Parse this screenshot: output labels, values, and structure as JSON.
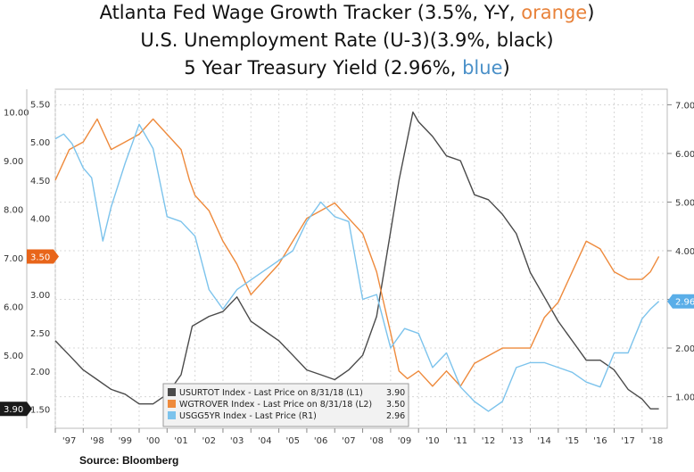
{
  "titles": {
    "line1_prefix": "Atlanta Fed Wage Growth Tracker (3.5%, Y-Y, ",
    "line1_highlight": "orange",
    "line1_suffix": ")",
    "line2": "U.S. Unemployment Rate (U-3)(3.9%, black)",
    "line3_prefix": "5 Year Treasury Yield (2.96%, ",
    "line3_highlight": "blue",
    "line3_suffix": ")"
  },
  "source": "Source: Bloomberg",
  "colors": {
    "unemployment": "#4a4a4a",
    "wage": "#ee8a3c",
    "treasury": "#7cc3ec",
    "tag_unemployment_bg": "#1a1a1a",
    "tag_wage_bg": "#e8651a",
    "tag_treasury_bg": "#5aaee8",
    "grid": "#d8d8d8"
  },
  "chart_data": {
    "type": "line",
    "x_ticks": [
      "'97",
      "'98",
      "'99",
      "'00",
      "'01",
      "'02",
      "'03",
      "'04",
      "'05",
      "'06",
      "'07",
      "'08",
      "'09",
      "'10",
      "'11",
      "'12",
      "'13",
      "'14",
      "'15",
      "'16",
      "'17",
      "'18"
    ],
    "x_range": [
      1997.0,
      2018.9
    ],
    "axes": {
      "unemployment": {
        "ticks": [
          "10.00",
          "9.00",
          "8.00",
          "7.00",
          "6.00",
          "5.00"
        ],
        "range": [
          3.5,
          10.25
        ]
      },
      "wage": {
        "ticks": [
          "5.50",
          "5.00",
          "4.50",
          "4.00",
          "3.50",
          "3.00",
          "2.50",
          "2.00",
          "1.50"
        ],
        "range": [
          1.25,
          5.55
        ]
      },
      "treasury": {
        "ticks": [
          "7.00",
          "6.00",
          "5.00",
          "4.00",
          "3.00",
          "2.00",
          "1.00"
        ],
        "range": [
          0.35,
          7.1
        ]
      }
    },
    "last_values": {
      "unemployment": "3.90",
      "wage": "3.50",
      "treasury": "2.96"
    },
    "legend": [
      {
        "series": "unemployment",
        "label": "USURTOT Index - Last Price on 8/31/18 (L1)",
        "value": "3.90"
      },
      {
        "series": "wage",
        "label": "WGTROVER Index - Last Price on 8/31/18 (L2)",
        "value": "3.50"
      },
      {
        "series": "treasury",
        "label": "USGG5YR Index - Last Price (R1)",
        "value": "2.96"
      }
    ],
    "series": [
      {
        "name": "unemployment",
        "axis": "unemployment",
        "x": [
          1997.0,
          1997.5,
          1998.0,
          1998.5,
          1999.0,
          1999.5,
          2000.0,
          2000.5,
          2001.0,
          2001.5,
          2001.9,
          2002.5,
          2003.0,
          2003.5,
          2003.8,
          2004.0,
          2004.5,
          2005.0,
          2005.5,
          2006.0,
          2006.5,
          2007.0,
          2007.5,
          2008.0,
          2008.5,
          2008.9,
          2009.3,
          2009.8,
          2010.0,
          2010.5,
          2011.0,
          2011.5,
          2012.0,
          2012.5,
          2013.0,
          2013.5,
          2014.0,
          2014.5,
          2015.0,
          2015.5,
          2016.0,
          2016.5,
          2017.0,
          2017.5,
          2018.0,
          2018.3,
          2018.6
        ],
        "values": [
          5.3,
          5.0,
          4.7,
          4.5,
          4.3,
          4.2,
          4.0,
          4.0,
          4.2,
          4.6,
          5.6,
          5.8,
          5.9,
          6.2,
          5.9,
          5.7,
          5.5,
          5.3,
          5.0,
          4.7,
          4.6,
          4.5,
          4.7,
          5.0,
          5.8,
          7.2,
          8.6,
          10.0,
          9.8,
          9.5,
          9.1,
          9.0,
          8.3,
          8.2,
          7.9,
          7.5,
          6.7,
          6.2,
          5.7,
          5.3,
          4.9,
          4.9,
          4.7,
          4.3,
          4.1,
          3.9,
          3.9
        ]
      },
      {
        "name": "wage",
        "axis": "wage",
        "x": [
          1997.0,
          1997.5,
          1998.0,
          1998.5,
          1999.0,
          1999.5,
          2000.0,
          2000.5,
          2001.0,
          2001.5,
          2001.8,
          2002.0,
          2002.5,
          2003.0,
          2003.5,
          2004.0,
          2004.5,
          2005.0,
          2005.5,
          2006.0,
          2006.5,
          2007.0,
          2007.5,
          2008.0,
          2008.5,
          2009.0,
          2009.3,
          2009.6,
          2010.0,
          2010.5,
          2011.0,
          2011.5,
          2012.0,
          2012.5,
          2013.0,
          2013.5,
          2014.0,
          2014.5,
          2015.0,
          2015.5,
          2016.0,
          2016.5,
          2017.0,
          2017.5,
          2018.0,
          2018.3,
          2018.6
        ],
        "values": [
          4.5,
          4.9,
          5.0,
          5.3,
          4.9,
          5.0,
          5.1,
          5.3,
          5.1,
          4.9,
          4.5,
          4.3,
          4.1,
          3.7,
          3.4,
          3.0,
          3.2,
          3.4,
          3.7,
          4.0,
          4.1,
          4.2,
          4.0,
          3.8,
          3.3,
          2.5,
          2.0,
          1.9,
          2.0,
          1.8,
          2.0,
          1.8,
          2.1,
          2.2,
          2.3,
          2.3,
          2.3,
          2.7,
          2.9,
          3.3,
          3.7,
          3.6,
          3.3,
          3.2,
          3.2,
          3.3,
          3.5
        ]
      },
      {
        "name": "treasury",
        "axis": "treasury",
        "x": [
          1997.0,
          1997.3,
          1997.6,
          1998.0,
          1998.3,
          1998.7,
          1999.0,
          1999.5,
          2000.0,
          2000.5,
          2001.0,
          2001.5,
          2002.0,
          2002.5,
          2003.0,
          2003.5,
          2004.0,
          2004.5,
          2005.0,
          2005.5,
          2006.0,
          2006.5,
          2007.0,
          2007.5,
          2008.0,
          2008.5,
          2009.0,
          2009.5,
          2010.0,
          2010.5,
          2011.0,
          2011.5,
          2012.0,
          2012.5,
          2013.0,
          2013.5,
          2014.0,
          2014.5,
          2015.0,
          2015.5,
          2016.0,
          2016.5,
          2017.0,
          2017.5,
          2018.0,
          2018.3,
          2018.6
        ],
        "values": [
          6.3,
          6.4,
          6.2,
          5.7,
          5.5,
          4.2,
          4.9,
          5.8,
          6.6,
          6.1,
          4.7,
          4.6,
          4.3,
          3.2,
          2.8,
          3.2,
          3.4,
          3.6,
          3.8,
          4.0,
          4.6,
          5.0,
          4.7,
          4.6,
          3.0,
          3.1,
          2.0,
          2.4,
          2.3,
          1.6,
          1.9,
          1.2,
          0.9,
          0.7,
          0.9,
          1.6,
          1.7,
          1.7,
          1.6,
          1.5,
          1.3,
          1.2,
          1.9,
          1.9,
          2.6,
          2.8,
          2.96
        ]
      }
    ]
  }
}
